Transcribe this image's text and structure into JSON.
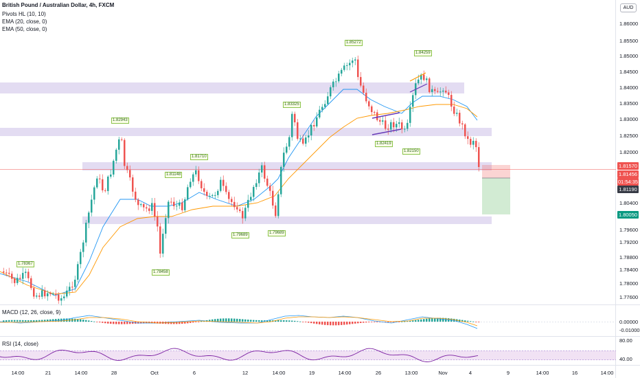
{
  "header": {
    "symbol_title": "British Pound / Australian Dollar, 4h, FXCM",
    "currency": "AUD"
  },
  "indicators": {
    "pivots": "Pivots HL (10, 10)",
    "ema20": "EMA (20, close, 0)",
    "ema50": "EMA (50, close, 0)",
    "macd": "MACD (12, 26, close, 9)",
    "rsi": "RSI (14, close)"
  },
  "price_axis": [
    "1.86000",
    "1.85500",
    "1.85000",
    "1.84500",
    "1.84000",
    "1.83500",
    "1.83000",
    "1.82500",
    "1.82000",
    "1.80400",
    "1.79600",
    "1.79200",
    "1.78800",
    "1.78400",
    "1.78000",
    "1.77600"
  ],
  "price_tags": {
    "sell_limit": "1.81570",
    "current": "1.81456",
    "countdown": "01:54:35",
    "entry": "1.81190",
    "target": "1.80050"
  },
  "macd_axis": [
    "0.00000",
    "-0.01000"
  ],
  "rsi_axis": [
    "80.00",
    "40.00"
  ],
  "time_axis": [
    "14:00",
    "21",
    "14:00",
    "28",
    "Oct",
    "6",
    "12",
    "14:00",
    "19",
    "14:00",
    "26",
    "13:00",
    "Nov",
    "4",
    "9",
    "14:00",
    "16",
    "14:00"
  ],
  "pivot_labels": [
    "1.78367",
    "1.82943",
    "1.81148",
    "1.81710",
    "1.78458",
    "1.83325",
    "1.79689",
    "1.79689",
    "1.85272",
    "1.82419",
    "1.82150",
    "1.84259"
  ],
  "colors": {
    "bull": "#26a69a",
    "bear": "#ef5350",
    "ema20": "#2196f3",
    "ema50": "#ff9800",
    "zone": "#d1c4e9",
    "rsi": "#7b1fa2",
    "pattern": "#673ab7",
    "target": "#4caf50"
  }
}
